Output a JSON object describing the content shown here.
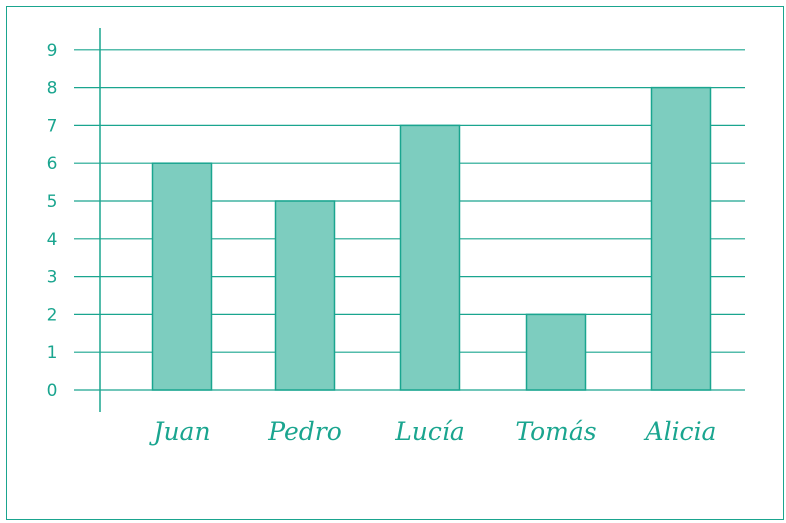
{
  "chart_data": {
    "type": "bar",
    "categories": [
      "Juan",
      "Pedro",
      "Lucía",
      "Tomás",
      "Alicia"
    ],
    "values": [
      6,
      5,
      7,
      2,
      8
    ],
    "title": "",
    "xlabel": "",
    "ylabel": "",
    "ylim": [
      0,
      9
    ],
    "yticks": [
      "0",
      "1",
      "2",
      "3",
      "4",
      "5",
      "6",
      "7",
      "8",
      "9"
    ],
    "grid": true,
    "legend": "none"
  },
  "colors": {
    "axis_grid": "#1aa58f",
    "bar_fill": "#7dcdbf",
    "bar_stroke": "#1aa58f",
    "text": "#1aa58f"
  }
}
